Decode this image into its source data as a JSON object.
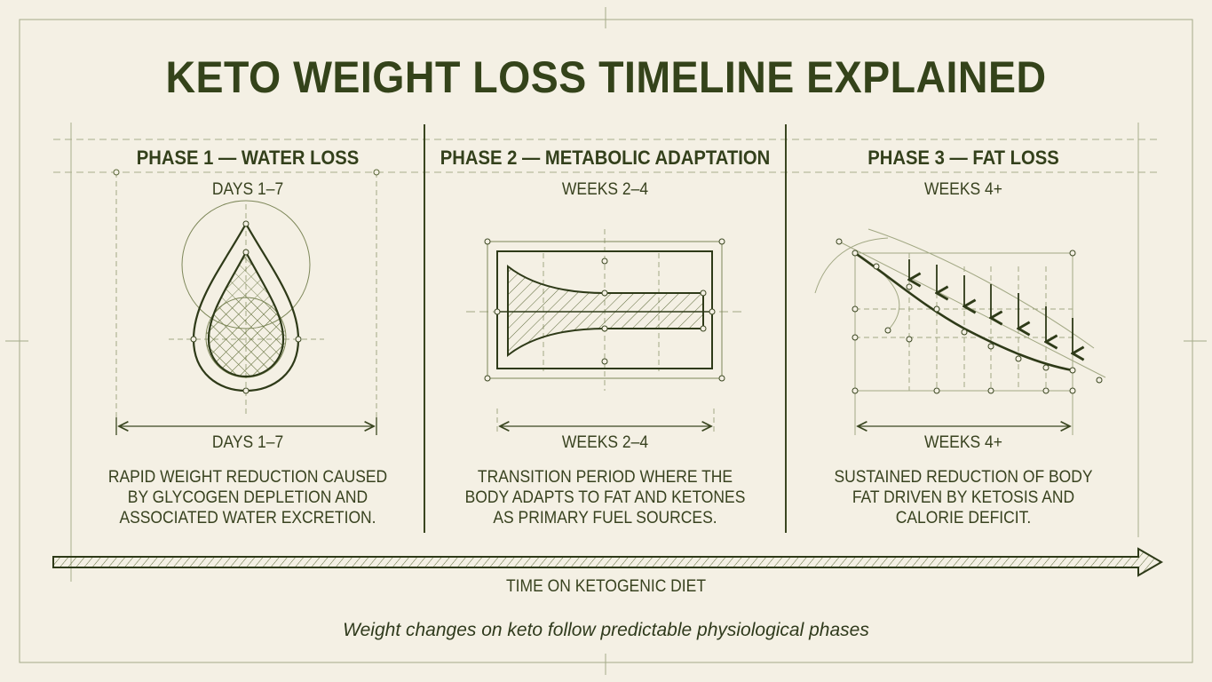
{
  "title": "KETO WEIGHT LOSS TIMELINE EXPLAINED",
  "phases": [
    {
      "heading": "PHASE 1 — WATER LOSS",
      "period_top": "DAYS 1–7",
      "period_bottom": "DAYS 1–7",
      "description": [
        "RAPID WEIGHT REDUCTION CAUSED",
        "BY GLYCOGEN DEPLETION AND",
        "ASSOCIATED WATER EXCRETION."
      ],
      "icon": "water-drop-icon"
    },
    {
      "heading": "PHASE 2 — METABOLIC ADAPTATION",
      "period_top": "WEEKS 2–4",
      "period_bottom": "WEEKS 2–4",
      "description": [
        "TRANSITION PERIOD WHERE THE",
        "BODY ADAPTS TO FAT AND KETONES",
        "AS PRIMARY FUEL SOURCES."
      ],
      "icon": "adaptation-funnel-icon"
    },
    {
      "heading": "PHASE 3 — FAT LOSS",
      "period_top": "WEEKS 4+",
      "period_bottom": "WEEKS 4+",
      "description": [
        "SUSTAINED REDUCTION OF BODY",
        "FAT DRIVEN BY KETOSIS AND",
        "CALORIE DEFICIT."
      ],
      "icon": "declining-curve-icon"
    }
  ],
  "timeline_label": "TIME ON KETOGENIC DIET",
  "caption": "Weight changes on keto follow predictable physiological phases",
  "colors": {
    "background": "#f4f0e4",
    "ink": "#34431a",
    "line": "#3a4620",
    "faint": "#8d9670"
  }
}
